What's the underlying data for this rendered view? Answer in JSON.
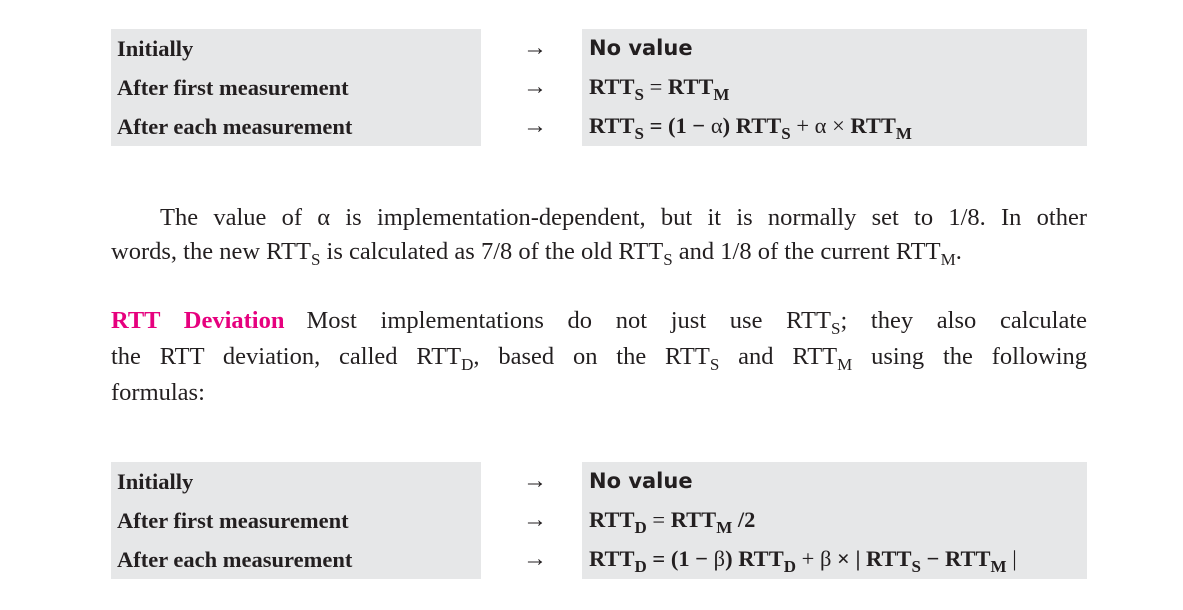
{
  "table1": {
    "rows": [
      {
        "label": "Initially",
        "arrow": "→",
        "formula_plain": "No value"
      },
      {
        "label": "After first measurement",
        "arrow": "→",
        "lhs": "RTT",
        "lhs_sub": "S",
        "eq": " = ",
        "rhs": "RTT",
        "rhs_sub": "M"
      },
      {
        "label": "After each measurement",
        "arrow": "→",
        "lhs": "RTT",
        "lhs_sub": "S",
        "eq": " = (1 − ",
        "greek": "α",
        "mid": ") RTT",
        "mid_sub": "S",
        "plus": " + ",
        "greek2": "α",
        "times": " × ",
        "rhs": " RTT",
        "rhs_sub": "M"
      }
    ]
  },
  "para1": {
    "line1_a": "The value of ",
    "alpha": "α",
    "line1_b": " is implementation-dependent, but it is normally set to 1/8. In other",
    "line2_a": "words, the new RTT",
    "sub_s1": "S",
    "line2_b": " is calculated as 7/8 of the old RTT",
    "sub_s2": "S",
    "line2_c": " and 1/8 of the current RTT",
    "sub_m": "M",
    "line2_d": "."
  },
  "para2": {
    "heading": "RTT Deviation",
    "line1_a": "Most implementations do not just use RTT",
    "sub_s1": "S",
    "line1_b": "; they also calculate",
    "line2_a": "the RTT deviation, called RTT",
    "sub_d": "D",
    "line2_b": ", based on the RTT",
    "sub_s2": "S",
    "line2_c": " and RTT",
    "sub_m": "M",
    "line2_d": " using the following",
    "line3": "formulas:"
  },
  "table2": {
    "rows": [
      {
        "label": "Initially",
        "arrow": "→",
        "formula_plain": "No value"
      },
      {
        "label": "After first measurement",
        "arrow": "→",
        "lhs": "RTT",
        "lhs_sub": "D",
        "eq": " = ",
        "rhs": "RTT",
        "rhs_sub": "M",
        "tail": " /2"
      },
      {
        "label": "After each measurement",
        "arrow": "→",
        "lhs": "RTT",
        "lhs_sub": "D",
        "eq": " = (1 − ",
        "greek": "β",
        "mid": ") RTT",
        "mid_sub": "D",
        "plus": " + ",
        "greek2": "β",
        "times": " × | RTT",
        "t_sub": "S",
        "minus": " − RTT",
        "rhs_sub": "M",
        "tail": " |"
      }
    ]
  }
}
